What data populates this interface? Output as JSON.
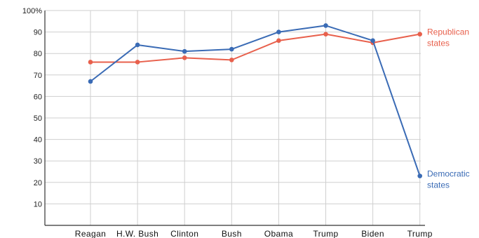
{
  "chart_data": {
    "type": "line",
    "title": "",
    "xlabel": "",
    "ylabel": "",
    "categories": [
      "Reagan",
      "H.W. Bush",
      "Clinton",
      "Bush",
      "Obama",
      "Trump",
      "Biden",
      "Trump"
    ],
    "ylim": [
      0,
      100
    ],
    "yticks": [
      {
        "value": 10,
        "label": "10"
      },
      {
        "value": 20,
        "label": "20"
      },
      {
        "value": 30,
        "label": "30"
      },
      {
        "value": 40,
        "label": "40"
      },
      {
        "value": 50,
        "label": "50"
      },
      {
        "value": 60,
        "label": "60"
      },
      {
        "value": 70,
        "label": "70"
      },
      {
        "value": 80,
        "label": "80"
      },
      {
        "value": 90,
        "label": "90"
      },
      {
        "value": 100,
        "label": "100%"
      }
    ],
    "grid": true,
    "series": [
      {
        "name": "Republican\nstates",
        "color": "#e8604c",
        "values": [
          76,
          76,
          78,
          77,
          86,
          89,
          85,
          89
        ]
      },
      {
        "name": "Democratic\nstates",
        "color": "#3a6bb5",
        "values": [
          67,
          84,
          81,
          82,
          90,
          93,
          86,
          23
        ]
      }
    ]
  }
}
